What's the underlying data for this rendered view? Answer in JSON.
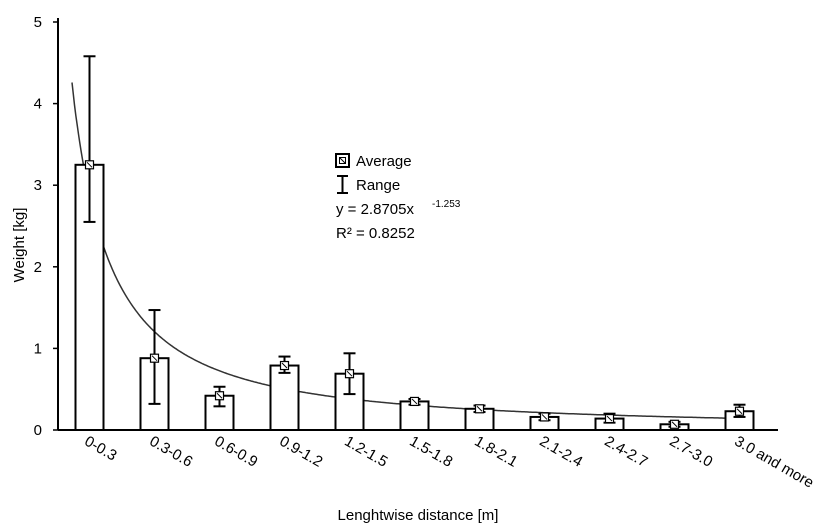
{
  "chart_data": {
    "type": "bar",
    "title": "",
    "xlabel": "Lenghtwise distance [m]",
    "ylabel": "Weight [kg]",
    "ylim": [
      0,
      5
    ],
    "yticks": [
      "0",
      "1",
      "2",
      "3",
      "4",
      "5"
    ],
    "categories": [
      "0-0.3",
      "0.3-0.6",
      "0.6-0.9",
      "0.9-1.2",
      "1.2-1.5",
      "1.5-1.8",
      "1.8-2.1",
      "2.1-2.4",
      "2.4-2.7",
      "2.7-3.0",
      "3.0 and more"
    ],
    "series": [
      {
        "name": "Average",
        "values": [
          3.25,
          0.88,
          0.42,
          0.79,
          0.69,
          0.35,
          0.26,
          0.16,
          0.14,
          0.07,
          0.23
        ]
      }
    ],
    "range": {
      "name": "Range",
      "min": [
        2.55,
        0.32,
        0.29,
        0.7,
        0.44,
        0.31,
        0.22,
        0.12,
        0.09,
        0.04,
        0.16
      ],
      "max": [
        4.58,
        1.47,
        0.53,
        0.9,
        0.94,
        0.38,
        0.3,
        0.2,
        0.2,
        0.1,
        0.31
      ]
    },
    "trendline": {
      "type": "power",
      "a": 2.8705,
      "b": -1.253,
      "equation_main": "y = 2.8705x",
      "equation_exponent": "-1.253",
      "r2_label": "R² = 0.8252"
    },
    "legend": {
      "placement": "upper-center",
      "entries": [
        "Average",
        "Range"
      ]
    },
    "grid": false
  }
}
